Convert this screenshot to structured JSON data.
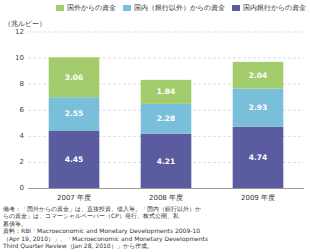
{
  "chart_data": {
    "type": "bar",
    "stacked": true,
    "data_labels": true,
    "grid": true,
    "legend": "upper right",
    "ylabel": "（兆ルピー）",
    "categories": [
      "2007 年度",
      "2008 年度",
      "2009 年度"
    ],
    "series": [
      {
        "name": "国内銀行からの資金",
        "color": "#5b5b9f",
        "values": [
          4.45,
          4.21,
          4.74
        ]
      },
      {
        "name": "国内（銀行以外）からの資金",
        "color": "#7abfda",
        "values": [
          2.55,
          2.28,
          2.93
        ]
      },
      {
        "name": "国外からの資金",
        "color": "#a3cc6c",
        "values": [
          3.06,
          1.84,
          2.04
        ]
      }
    ],
    "ylim": [
      0,
      12
    ],
    "yticks": [
      0,
      2,
      4,
      6,
      8,
      10,
      12
    ],
    "annotations": [
      "備考：「国外からの資金」は、直接投資、借入等。「国内（銀行以外）か",
      "らの資金」は、コマーシャルペーパー（CP）発行、株式公開、私",
      "募債等。",
      "資料：RBI「Macroeconomic and Monetary Developments 2009-10",
      "（Apr 19, 2010）」、「Macroeconomic and Monetary Developments",
      "Third Quarter Review（Jan 28, 2010）」から作成。"
    ]
  }
}
